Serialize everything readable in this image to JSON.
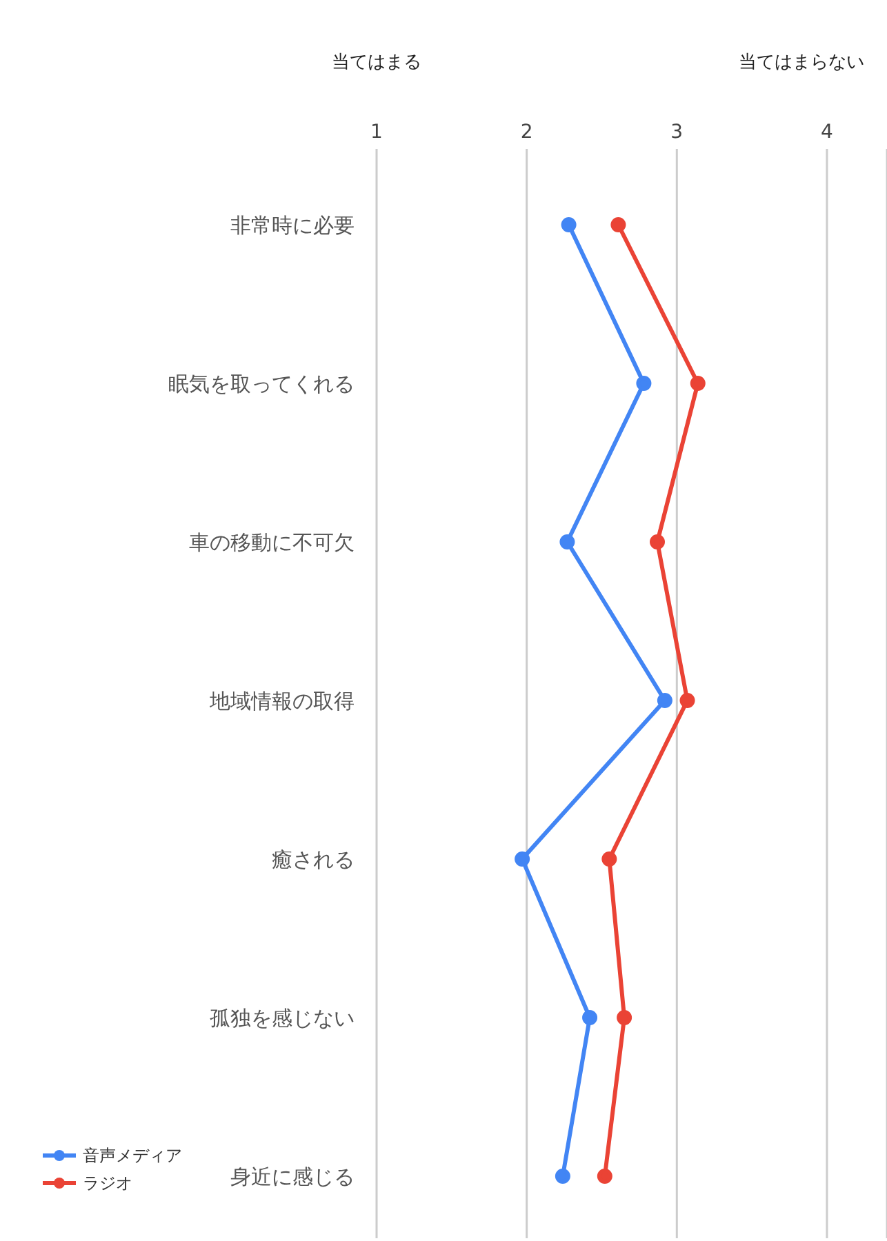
{
  "chart_data": {
    "type": "line",
    "orientation": "horizontal",
    "annotations": [
      "当てはまる",
      "当てはまらない"
    ],
    "categories": [
      "非常時に必要",
      "眠気を取ってくれる",
      "車の移動に不可欠",
      "地域情報の取得",
      "癒される",
      "孤独を感じない",
      "身近に感じる"
    ],
    "series": [
      {
        "name": "音声メディア",
        "color": "#4285f4",
        "values": [
          2.28,
          2.78,
          2.27,
          2.92,
          1.97,
          2.42,
          2.24
        ]
      },
      {
        "name": "ラジオ",
        "color": "#ea4335",
        "values": [
          2.61,
          3.14,
          2.87,
          3.07,
          2.55,
          2.65,
          2.52
        ]
      }
    ],
    "xlim": [
      1,
      4.4
    ],
    "xticks": [
      1,
      2,
      3,
      4
    ],
    "grid": "x",
    "legend": "bottom left",
    "marker": "circle",
    "line_style": "solid"
  }
}
